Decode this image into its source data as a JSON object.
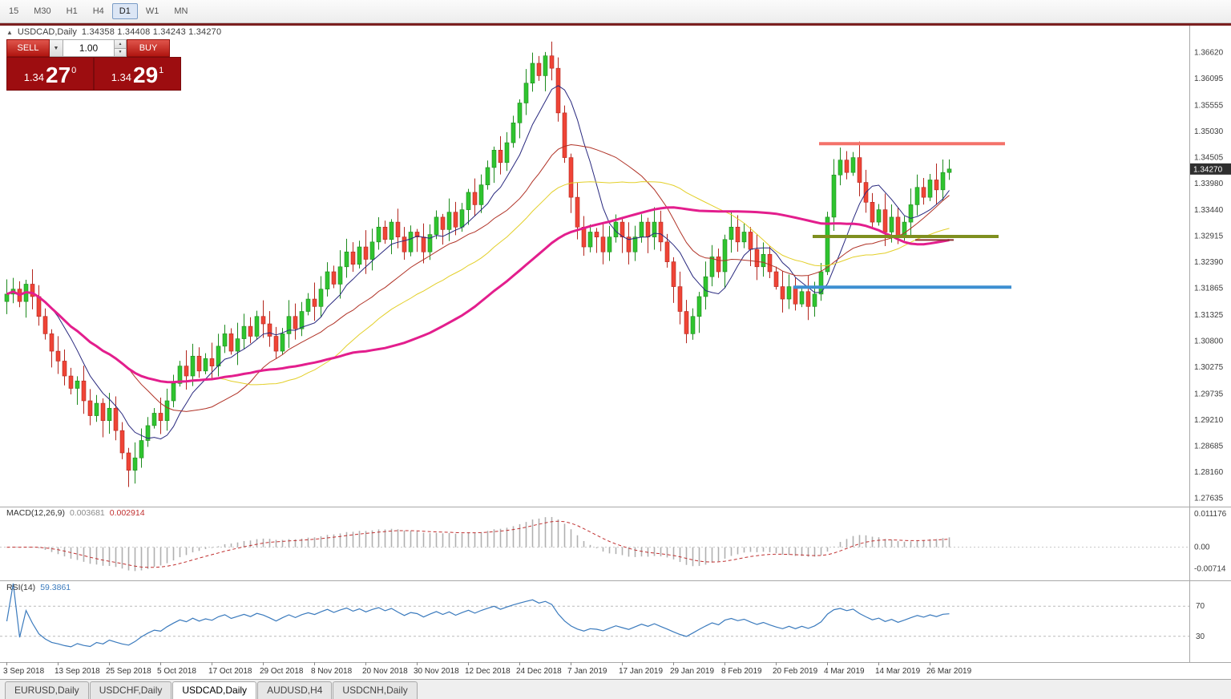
{
  "toolbar": {
    "timeframes": [
      "15",
      "M30",
      "H1",
      "H4",
      "D1",
      "W1",
      "MN"
    ],
    "active_timeframe": "D1"
  },
  "chart_header": {
    "collapse_icon": "▲",
    "title": "USDCAD,Daily",
    "ohlc_text": "1.34358 1.34408 1.34243 1.34270"
  },
  "trade_panel": {
    "sell_label": "SELL",
    "buy_label": "BUY",
    "volume": "1.00",
    "dropdown_icon": "▼",
    "spin_up_icon": "▲",
    "spin_down_icon": "▼",
    "sell_price": {
      "small": "1.34",
      "big": "27",
      "sup": "0"
    },
    "buy_price": {
      "small": "1.34",
      "big": "29",
      "sup": "1"
    }
  },
  "price_scale": {
    "ticks": [
      "1.36620",
      "1.36095",
      "1.35555",
      "1.35030",
      "1.34505",
      "1.33980",
      "1.33440",
      "1.32915",
      "1.32390",
      "1.31865",
      "1.31325",
      "1.30800",
      "1.30275",
      "1.29735",
      "1.29210",
      "1.28685",
      "1.28160",
      "1.27635"
    ],
    "current_price": "1.34270",
    "current_price_value": 1.3427
  },
  "macd_panel": {
    "name": "MACD(12,26,9)",
    "main_value": "0.003681",
    "signal_value": "0.002914",
    "scale_top": "0.011176",
    "scale_zero": "0.00",
    "scale_bottom": "-0.00714",
    "scale_top_value": 0.011176,
    "scale_bottom_value": -0.00714
  },
  "rsi_panel": {
    "name": "RSI(14)",
    "value": "59.3861",
    "scale_upper": "70",
    "scale_lower": "30",
    "upper_level": 70,
    "lower_level": 30
  },
  "bottom_tabs": {
    "tabs": [
      "EURUSD,Daily",
      "USDCHF,Daily",
      "USDCAD,Daily",
      "AUDUSD,H4",
      "USDCNH,Daily"
    ],
    "active": "USDCAD,Daily"
  },
  "chart_data": {
    "type": "candlestick",
    "title": "USDCAD,Daily",
    "ylim": [
      1.275,
      1.369
    ],
    "x_tick_labels": [
      "3 Sep 2018",
      "13 Sep 2018",
      "25 Sep 2018",
      "5 Oct 2018",
      "17 Oct 2018",
      "29 Oct 2018",
      "8 Nov 2018",
      "20 Nov 2018",
      "30 Nov 2018",
      "12 Dec 2018",
      "24 Dec 2018",
      "7 Jan 2019",
      "17 Jan 2019",
      "29 Jan 2019",
      "8 Feb 2019",
      "20 Feb 2019",
      "4 Mar 2019",
      "14 Mar 2019",
      "26 Mar 2019"
    ],
    "x_tick_step": 8,
    "closes": [
      1.3175,
      1.3185,
      1.316,
      1.3195,
      1.317,
      1.313,
      1.3095,
      1.306,
      1.304,
      1.301,
      1.2985,
      1.3,
      1.296,
      1.293,
      1.2955,
      1.292,
      1.2945,
      1.29,
      1.2855,
      1.282,
      1.2845,
      1.288,
      1.291,
      1.2935,
      1.292,
      1.296,
      1.2995,
      1.303,
      1.301,
      1.305,
      1.302,
      1.3045,
      1.303,
      1.307,
      1.3095,
      1.306,
      1.3085,
      1.311,
      1.309,
      1.313,
      1.3115,
      1.309,
      1.306,
      1.3095,
      1.313,
      1.3105,
      1.314,
      1.3165,
      1.315,
      1.3185,
      1.322,
      1.3195,
      1.323,
      1.326,
      1.3235,
      1.327,
      1.3245,
      1.328,
      1.331,
      1.3285,
      1.332,
      1.329,
      1.326,
      1.33,
      1.329,
      1.326,
      1.3295,
      1.333,
      1.3305,
      1.334,
      1.331,
      1.3345,
      1.338,
      1.3355,
      1.3395,
      1.343,
      1.3465,
      1.344,
      1.348,
      1.352,
      1.356,
      1.36,
      1.364,
      1.3615,
      1.3655,
      1.363,
      1.354,
      1.345,
      1.337,
      1.331,
      1.327,
      1.33,
      1.329,
      1.326,
      1.329,
      1.332,
      1.329,
      1.326,
      1.329,
      1.332,
      1.329,
      1.332,
      1.328,
      1.324,
      1.319,
      1.314,
      1.3095,
      1.313,
      1.317,
      1.321,
      1.325,
      1.322,
      1.3285,
      1.331,
      1.328,
      1.33,
      1.3265,
      1.323,
      1.3255,
      1.322,
      1.319,
      1.3165,
      1.319,
      1.3155,
      1.318,
      1.315,
      1.3175,
      1.322,
      1.333,
      1.3415,
      1.3445,
      1.342,
      1.345,
      1.34,
      1.336,
      1.332,
      1.3345,
      1.33,
      1.333,
      1.329,
      1.332,
      1.3355,
      1.339,
      1.337,
      1.3405,
      1.3385,
      1.342,
      1.3427
    ],
    "moving_averages": [
      {
        "name": "ma-fast-navy",
        "period": 8,
        "color": "#28287e",
        "width": 1
      },
      {
        "name": "ma-mid-darkred",
        "period": 20,
        "color": "#b03226",
        "width": 1
      },
      {
        "name": "ma-slow-yellow",
        "period": 34,
        "color": "#e3cf28",
        "width": 1
      },
      {
        "name": "ma-trend-magenta",
        "period": 55,
        "color": "#e31e8d",
        "width": 3
      }
    ],
    "hlines": [
      {
        "name": "resistance-line-red",
        "price": 1.3478,
        "from": 127,
        "to": 156,
        "color": "#f4726a",
        "width": 4
      },
      {
        "name": "support-line-olive",
        "price": 1.3291,
        "from": 126,
        "to": 155,
        "color": "#7f8f1f",
        "width": 4
      },
      {
        "name": "support-line-blue",
        "price": 1.3189,
        "from": 123,
        "to": 157,
        "color": "#3d8fd1",
        "width": 4
      },
      {
        "name": "short-line-maroon",
        "price": 1.3284,
        "from": 142,
        "to": 148,
        "color": "#8b3030",
        "width": 2
      }
    ],
    "macd": {
      "fast": 12,
      "slow": 26,
      "signal": 9,
      "last_main": 0.003681,
      "last_signal": 0.002914,
      "scale_max": 0.0125,
      "scale_min": -0.01,
      "hist_color": "#b0b0b0",
      "signal_color": "#c03030"
    },
    "rsi": {
      "period": 14,
      "last_value": 59.3861,
      "line_color": "#3a7abd",
      "level_color": "#bbbbbb"
    },
    "colors": {
      "up_body": "#2fc42f",
      "up_border": "#1d8a1d",
      "down_body": "#ef4436",
      "down_border": "#b3261e",
      "scale_text": "#3c3c3c",
      "separator": "#a8a8a8",
      "current_price_bg": "#2f2f2f",
      "current_price_text": "#ffffff"
    }
  }
}
